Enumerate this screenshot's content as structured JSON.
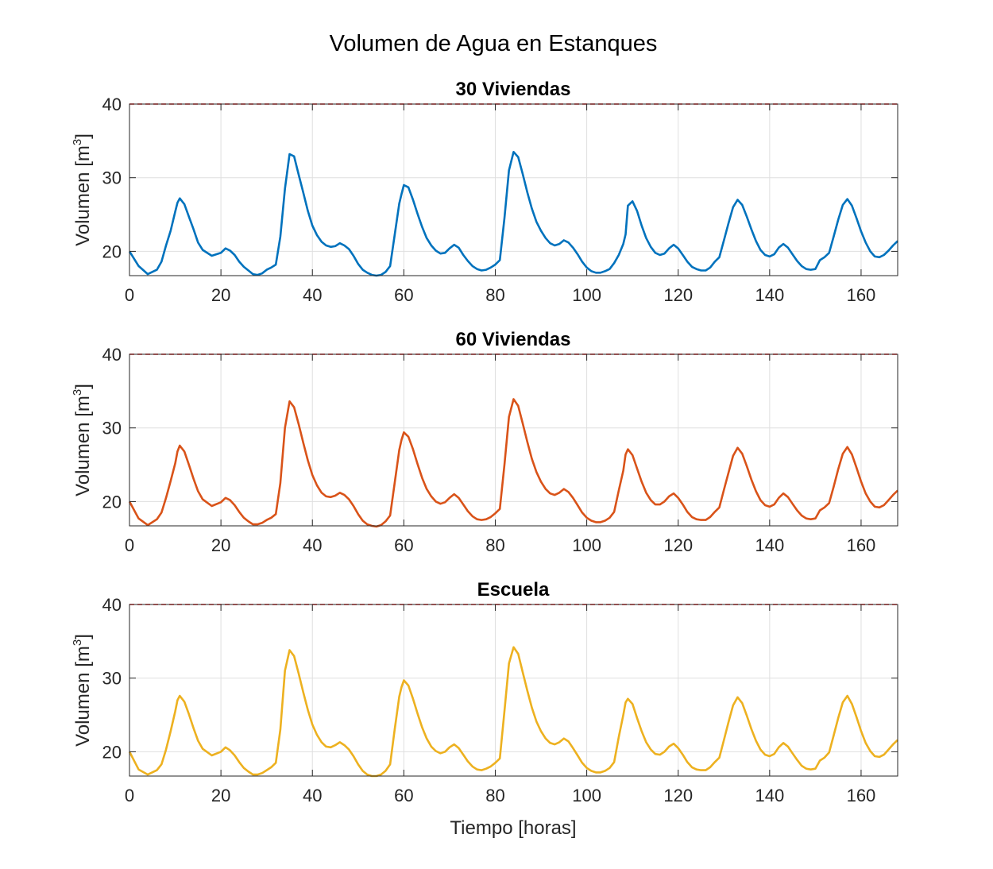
{
  "figure": {
    "title": "Volumen de Agua en Estanques"
  },
  "chart_data": [
    {
      "type": "line",
      "title": "30 Viviendas",
      "xlabel": "",
      "ylabel": "Volumen [m",
      "ylabel_sup": "3",
      "ylabel_close": "]",
      "xlim": [
        0,
        168
      ],
      "ylim": [
        16.7,
        40
      ],
      "xticks": [
        0,
        20,
        40,
        60,
        80,
        100,
        120,
        140,
        160
      ],
      "yticks": [
        20,
        30,
        40
      ],
      "grid": true,
      "limit_line": {
        "y": 40,
        "color": "#ff0000",
        "style": "dashed"
      },
      "series": [
        {
          "color": "#0072bd",
          "x": [
            0,
            2,
            4,
            6,
            7,
            8,
            9,
            10,
            10.5,
            11,
            12,
            13,
            14,
            15,
            16,
            18,
            20,
            21,
            22,
            23,
            24,
            25,
            26,
            27,
            28,
            29,
            30,
            31,
            32,
            33,
            34,
            35,
            36,
            37,
            38,
            39,
            40,
            41,
            42,
            43,
            44,
            45,
            46,
            47,
            48,
            49,
            50,
            51,
            52,
            53,
            54,
            55,
            56,
            57,
            58,
            59,
            59.5,
            60,
            61,
            62,
            63,
            64,
            65,
            66,
            67,
            68,
            69,
            70,
            71,
            72,
            73,
            74,
            75,
            76,
            77,
            78,
            79,
            80,
            81,
            82,
            83,
            84,
            85,
            86,
            87,
            88,
            89,
            90,
            91,
            92,
            93,
            94,
            95,
            96,
            97,
            98,
            99,
            100,
            101,
            102,
            103,
            104,
            105,
            106,
            107,
            108,
            108.5,
            109,
            110,
            111,
            112,
            113,
            114,
            115,
            116,
            117,
            118,
            119,
            120,
            121,
            122,
            123,
            124,
            125,
            126,
            127,
            128,
            129,
            130,
            131,
            132,
            133,
            134,
            135,
            136,
            137,
            138,
            139,
            140,
            141,
            142,
            143,
            144,
            145,
            146,
            147,
            148,
            149,
            150,
            151,
            152,
            153,
            154,
            155,
            156,
            157,
            158,
            159,
            160,
            161,
            162,
            163,
            164,
            165,
            166,
            167,
            168
          ],
          "y": [
            20,
            18,
            16.9,
            17.5,
            18.6,
            20.8,
            22.8,
            25.4,
            26.6,
            27.2,
            26.4,
            24.7,
            23,
            21.2,
            20.2,
            19.4,
            19.8,
            20.4,
            20.1,
            19.5,
            18.6,
            17.9,
            17.4,
            16.9,
            16.8,
            17,
            17.5,
            17.8,
            18.2,
            22,
            28.5,
            33.2,
            32.9,
            30.4,
            28,
            25.5,
            23.5,
            22.2,
            21.3,
            20.8,
            20.6,
            20.7,
            21.1,
            20.8,
            20.3,
            19.4,
            18.3,
            17.5,
            17.1,
            16.8,
            16.7,
            16.8,
            17.2,
            18,
            22.2,
            26.5,
            27.8,
            29,
            28.7,
            27,
            25.1,
            23.3,
            21.8,
            20.8,
            20.1,
            19.7,
            19.8,
            20.4,
            20.9,
            20.5,
            19.5,
            18.7,
            18,
            17.6,
            17.4,
            17.5,
            17.8,
            18.2,
            18.8,
            24.5,
            31,
            33.5,
            32.8,
            30.5,
            28,
            25.8,
            24,
            22.8,
            21.8,
            21.1,
            20.8,
            21,
            21.5,
            21.2,
            20.5,
            19.6,
            18.6,
            17.8,
            17.3,
            17.1,
            17.1,
            17.3,
            17.6,
            18.4,
            19.5,
            21,
            22.3,
            26.2,
            26.8,
            25.5,
            23.5,
            21.8,
            20.6,
            19.8,
            19.5,
            19.7,
            20.4,
            20.9,
            20.4,
            19.5,
            18.6,
            17.9,
            17.6,
            17.4,
            17.4,
            17.8,
            18.6,
            19.2,
            21.5,
            23.8,
            26,
            27,
            26.3,
            24.7,
            23,
            21.4,
            20.2,
            19.5,
            19.3,
            19.6,
            20.5,
            21,
            20.5,
            19.6,
            18.7,
            18,
            17.6,
            17.5,
            17.6,
            18.8,
            19.2,
            19.8,
            22,
            24.3,
            26.3,
            27.1,
            26.2,
            24.5,
            22.7,
            21.2,
            20,
            19.3,
            19.2,
            19.5,
            20.1,
            20.8,
            21.4
          ]
        }
      ]
    },
    {
      "type": "line",
      "title": "60 Viviendas",
      "xlabel": "",
      "ylabel": "Volumen [m",
      "ylabel_sup": "3",
      "ylabel_close": "]",
      "xlim": [
        0,
        168
      ],
      "ylim": [
        16.7,
        40
      ],
      "xticks": [
        0,
        20,
        40,
        60,
        80,
        100,
        120,
        140,
        160
      ],
      "yticks": [
        20,
        30,
        40
      ],
      "grid": true,
      "limit_line": {
        "y": 40,
        "color": "#ff0000",
        "style": "dashed"
      },
      "series": [
        {
          "color": "#d95319",
          "x": [
            0,
            2,
            4,
            6,
            7,
            8,
            9,
            10,
            10.5,
            11,
            12,
            13,
            14,
            15,
            16,
            18,
            20,
            21,
            22,
            23,
            24,
            25,
            26,
            27,
            28,
            29,
            30,
            31,
            32,
            33,
            34,
            35,
            36,
            37,
            38,
            39,
            40,
            41,
            42,
            43,
            44,
            45,
            46,
            47,
            48,
            49,
            50,
            51,
            52,
            53,
            54,
            55,
            56,
            57,
            58,
            59,
            59.5,
            60,
            61,
            62,
            63,
            64,
            65,
            66,
            67,
            68,
            69,
            70,
            71,
            72,
            73,
            74,
            75,
            76,
            77,
            78,
            79,
            80,
            81,
            82,
            83,
            84,
            85,
            86,
            87,
            88,
            89,
            90,
            91,
            92,
            93,
            94,
            95,
            96,
            97,
            98,
            99,
            100,
            101,
            102,
            103,
            104,
            105,
            106,
            107,
            108,
            108.5,
            109,
            110,
            111,
            112,
            113,
            114,
            115,
            116,
            117,
            118,
            119,
            120,
            121,
            122,
            123,
            124,
            125,
            126,
            127,
            128,
            129,
            130,
            131,
            132,
            133,
            134,
            135,
            136,
            137,
            138,
            139,
            140,
            141,
            142,
            143,
            144,
            145,
            146,
            147,
            148,
            149,
            150,
            151,
            152,
            153,
            154,
            155,
            156,
            157,
            158,
            159,
            160,
            161,
            162,
            163,
            164,
            165,
            166,
            167,
            168
          ],
          "y": [
            20,
            17.7,
            16.8,
            17.6,
            18.5,
            20.5,
            22.8,
            25.2,
            26.8,
            27.6,
            26.8,
            25,
            23.1,
            21.4,
            20.3,
            19.4,
            19.9,
            20.5,
            20.2,
            19.5,
            18.6,
            17.8,
            17.3,
            16.9,
            16.9,
            17.1,
            17.5,
            17.8,
            18.3,
            22.5,
            30,
            33.6,
            32.8,
            30.5,
            28,
            25.6,
            23.6,
            22.2,
            21.2,
            20.7,
            20.6,
            20.8,
            21.2,
            20.9,
            20.3,
            19.4,
            18.3,
            17.4,
            16.9,
            16.7,
            16.6,
            16.8,
            17.3,
            18.1,
            22.5,
            27,
            28.4,
            29.4,
            28.8,
            27.1,
            25.1,
            23.2,
            21.7,
            20.7,
            20,
            19.7,
            19.9,
            20.5,
            21,
            20.5,
            19.6,
            18.7,
            18,
            17.6,
            17.5,
            17.6,
            17.9,
            18.4,
            19,
            25,
            31.5,
            33.9,
            33,
            30.6,
            28.1,
            25.8,
            24,
            22.7,
            21.7,
            21.1,
            20.9,
            21.2,
            21.7,
            21.3,
            20.5,
            19.5,
            18.5,
            17.8,
            17.4,
            17.2,
            17.2,
            17.4,
            17.8,
            18.6,
            21.5,
            24.2,
            26.4,
            27.1,
            26.3,
            24.5,
            22.7,
            21.2,
            20.2,
            19.6,
            19.6,
            20,
            20.7,
            21.1,
            20.5,
            19.6,
            18.6,
            17.9,
            17.6,
            17.5,
            17.5,
            17.9,
            18.6,
            19.2,
            21.6,
            23.9,
            26.2,
            27.3,
            26.5,
            24.8,
            23,
            21.4,
            20.2,
            19.5,
            19.3,
            19.6,
            20.5,
            21.1,
            20.6,
            19.7,
            18.8,
            18.1,
            17.7,
            17.6,
            17.7,
            18.8,
            19.2,
            19.8,
            22,
            24.4,
            26.5,
            27.4,
            26.4,
            24.6,
            22.7,
            21.1,
            20,
            19.3,
            19.2,
            19.5,
            20.2,
            20.9,
            21.5
          ]
        }
      ]
    },
    {
      "type": "line",
      "title": "Escuela",
      "xlabel": "Tiempo [horas]",
      "ylabel": "Volumen [m",
      "ylabel_sup": "3",
      "ylabel_close": "]",
      "xlim": [
        0,
        168
      ],
      "ylim": [
        16.7,
        40
      ],
      "xticks": [
        0,
        20,
        40,
        60,
        80,
        100,
        120,
        140,
        160
      ],
      "yticks": [
        20,
        30,
        40
      ],
      "grid": true,
      "limit_line": {
        "y": 40,
        "color": "#ff0000",
        "style": "dashed"
      },
      "series": [
        {
          "color": "#edb120",
          "x": [
            0,
            2,
            4,
            6,
            7,
            8,
            9,
            10,
            10.5,
            11,
            12,
            13,
            14,
            15,
            16,
            18,
            20,
            21,
            22,
            23,
            24,
            25,
            26,
            27,
            28,
            29,
            30,
            31,
            32,
            33,
            34,
            35,
            36,
            37,
            38,
            39,
            40,
            41,
            42,
            43,
            44,
            45,
            46,
            47,
            48,
            49,
            50,
            51,
            52,
            53,
            54,
            55,
            56,
            57,
            58,
            59,
            59.5,
            60,
            61,
            62,
            63,
            64,
            65,
            66,
            67,
            68,
            69,
            70,
            71,
            72,
            73,
            74,
            75,
            76,
            77,
            78,
            79,
            80,
            81,
            82,
            83,
            84,
            85,
            86,
            87,
            88,
            89,
            90,
            91,
            92,
            93,
            94,
            95,
            96,
            97,
            98,
            99,
            100,
            101,
            102,
            103,
            104,
            105,
            106,
            107,
            108,
            108.5,
            109,
            110,
            111,
            112,
            113,
            114,
            115,
            116,
            117,
            118,
            119,
            120,
            121,
            122,
            123,
            124,
            125,
            126,
            127,
            128,
            129,
            130,
            131,
            132,
            133,
            134,
            135,
            136,
            137,
            138,
            139,
            140,
            141,
            142,
            143,
            144,
            145,
            146,
            147,
            148,
            149,
            150,
            151,
            152,
            153,
            154,
            155,
            156,
            157,
            158,
            159,
            160,
            161,
            162,
            163,
            164,
            165,
            166,
            167,
            168
          ],
          "y": [
            20,
            17.6,
            16.9,
            17.5,
            18.3,
            20.3,
            22.8,
            25.5,
            27,
            27.6,
            26.8,
            25.1,
            23.2,
            21.5,
            20.4,
            19.5,
            20,
            20.6,
            20.2,
            19.5,
            18.6,
            17.8,
            17.3,
            16.9,
            16.9,
            17.1,
            17.5,
            17.9,
            18.5,
            23,
            31,
            33.8,
            33,
            30.6,
            28.1,
            25.7,
            23.7,
            22.3,
            21.3,
            20.7,
            20.6,
            20.9,
            21.3,
            20.9,
            20.3,
            19.4,
            18.3,
            17.4,
            16.9,
            16.7,
            16.7,
            16.9,
            17.4,
            18.3,
            23,
            27.5,
            28.8,
            29.7,
            29,
            27.2,
            25.2,
            23.3,
            21.8,
            20.7,
            20.1,
            19.8,
            20,
            20.6,
            21,
            20.5,
            19.6,
            18.7,
            18,
            17.6,
            17.5,
            17.7,
            18,
            18.5,
            19.1,
            25.5,
            32,
            34.2,
            33.3,
            30.8,
            28.3,
            26,
            24.1,
            22.8,
            21.8,
            21.2,
            21,
            21.3,
            21.8,
            21.4,
            20.5,
            19.5,
            18.5,
            17.8,
            17.4,
            17.2,
            17.2,
            17.4,
            17.8,
            18.6,
            22,
            25,
            26.7,
            27.2,
            26.5,
            24.6,
            22.8,
            21.3,
            20.3,
            19.7,
            19.6,
            20,
            20.7,
            21.1,
            20.5,
            19.6,
            18.6,
            17.9,
            17.6,
            17.5,
            17.5,
            17.9,
            18.6,
            19.2,
            21.6,
            24,
            26.3,
            27.4,
            26.6,
            24.9,
            23.1,
            21.5,
            20.3,
            19.6,
            19.4,
            19.7,
            20.6,
            21.2,
            20.7,
            19.8,
            18.9,
            18.1,
            17.7,
            17.6,
            17.7,
            18.8,
            19.2,
            19.9,
            22.2,
            24.6,
            26.7,
            27.6,
            26.5,
            24.7,
            22.8,
            21.2,
            20.1,
            19.4,
            19.3,
            19.6,
            20.3,
            21,
            21.6
          ]
        }
      ]
    }
  ]
}
